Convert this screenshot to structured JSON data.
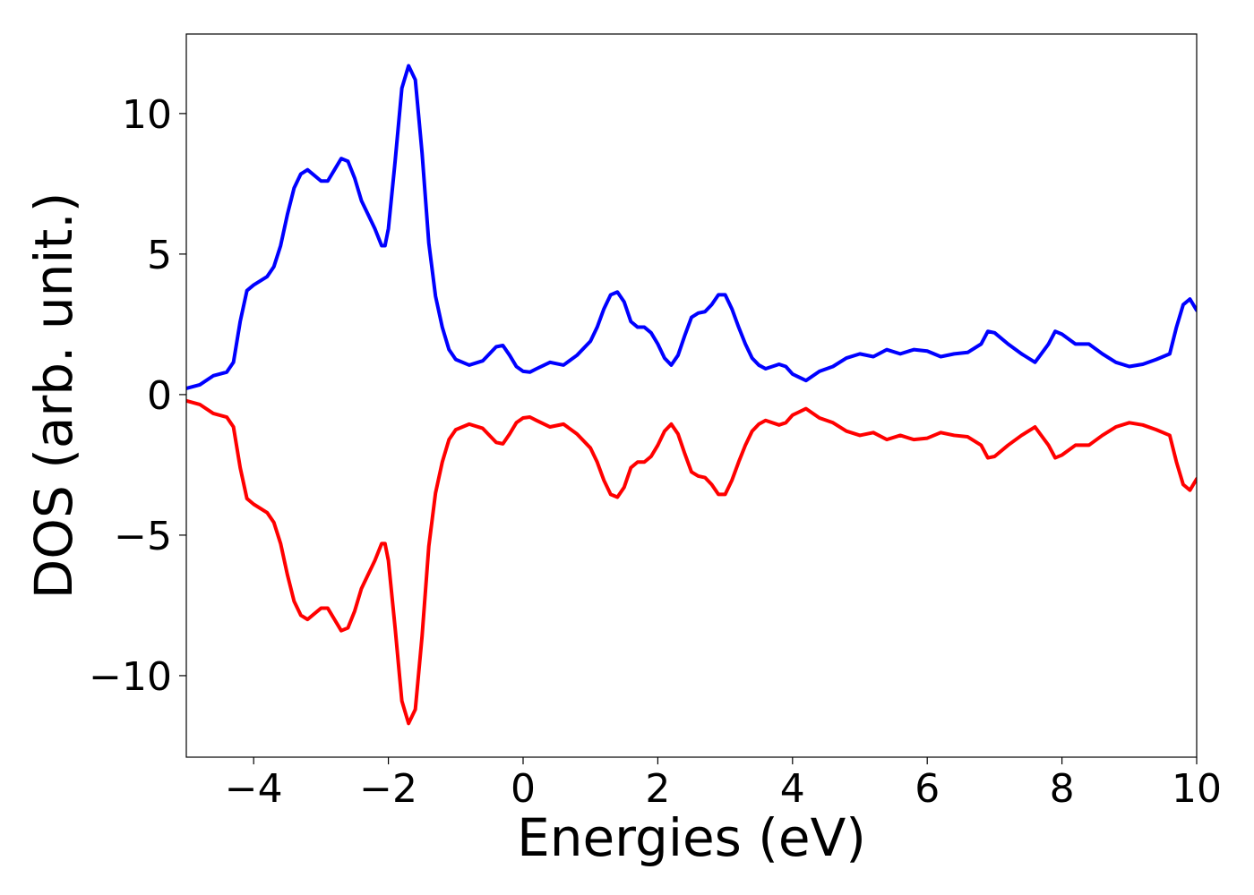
{
  "chart_data": {
    "type": "line",
    "xlabel": "Energies (eV)",
    "ylabel": "DOS (arb. unit.)",
    "x": [
      -5,
      -4.8,
      -4.6,
      -4.4,
      -4.3,
      -4.2,
      -4.1,
      -4.0,
      -3.8,
      -3.7,
      -3.6,
      -3.5,
      -3.4,
      -3.3,
      -3.2,
      -3.1,
      -3.0,
      -2.9,
      -2.8,
      -2.7,
      -2.6,
      -2.5,
      -2.4,
      -2.3,
      -2.2,
      -2.1,
      -2.05,
      -2.0,
      -1.9,
      -1.8,
      -1.7,
      -1.6,
      -1.5,
      -1.4,
      -1.3,
      -1.2,
      -1.1,
      -1.0,
      -0.8,
      -0.6,
      -0.4,
      -0.3,
      -0.2,
      -0.1,
      0.0,
      0.1,
      0.2,
      0.4,
      0.6,
      0.8,
      1.0,
      1.1,
      1.2,
      1.3,
      1.4,
      1.5,
      1.6,
      1.7,
      1.8,
      1.9,
      2.0,
      2.1,
      2.2,
      2.3,
      2.4,
      2.5,
      2.6,
      2.7,
      2.8,
      2.9,
      3.0,
      3.1,
      3.2,
      3.3,
      3.4,
      3.5,
      3.6,
      3.8,
      3.9,
      4.0,
      4.2,
      4.4,
      4.6,
      4.8,
      5.0,
      5.2,
      5.4,
      5.6,
      5.8,
      6.0,
      6.2,
      6.4,
      6.6,
      6.8,
      6.9,
      7.0,
      7.2,
      7.4,
      7.6,
      7.8,
      7.9,
      8.0,
      8.2,
      8.4,
      8.6,
      8.8,
      9.0,
      9.2,
      9.4,
      9.6,
      9.7,
      9.8,
      9.9,
      10.0
    ],
    "series": [
      {
        "color": "#0000ff",
        "values": [
          0.22,
          0.35,
          0.67,
          0.8,
          1.15,
          2.6,
          3.7,
          3.9,
          4.2,
          4.55,
          5.3,
          6.4,
          7.35,
          7.85,
          8.0,
          7.8,
          7.6,
          7.6,
          8.0,
          8.4,
          8.3,
          7.7,
          6.9,
          6.4,
          5.9,
          5.3,
          5.3,
          5.9,
          8.3,
          10.9,
          11.7,
          11.2,
          8.6,
          5.4,
          3.5,
          2.4,
          1.6,
          1.25,
          1.05,
          1.2,
          1.7,
          1.75,
          1.4,
          1.0,
          0.83,
          0.8,
          0.92,
          1.15,
          1.05,
          1.4,
          1.9,
          2.4,
          3.05,
          3.55,
          3.65,
          3.3,
          2.6,
          2.4,
          2.4,
          2.2,
          1.8,
          1.3,
          1.05,
          1.4,
          2.1,
          2.75,
          2.9,
          2.95,
          3.2,
          3.55,
          3.55,
          3.05,
          2.4,
          1.8,
          1.3,
          1.05,
          0.92,
          1.08,
          1.0,
          0.73,
          0.5,
          0.83,
          1.0,
          1.3,
          1.45,
          1.35,
          1.6,
          1.45,
          1.6,
          1.55,
          1.35,
          1.45,
          1.5,
          1.8,
          2.25,
          2.2,
          1.8,
          1.45,
          1.15,
          1.8,
          2.25,
          2.15,
          1.8,
          1.8,
          1.45,
          1.15,
          1.0,
          1.08,
          1.25,
          1.45,
          2.4,
          3.2,
          3.4,
          3.0
        ]
      },
      {
        "color": "#ff0000",
        "values": [
          -0.22,
          -0.35,
          -0.67,
          -0.8,
          -1.15,
          -2.6,
          -3.7,
          -3.9,
          -4.2,
          -4.55,
          -5.3,
          -6.4,
          -7.35,
          -7.85,
          -8.0,
          -7.8,
          -7.6,
          -7.6,
          -8.0,
          -8.4,
          -8.3,
          -7.7,
          -6.9,
          -6.4,
          -5.9,
          -5.3,
          -5.3,
          -5.9,
          -8.3,
          -10.9,
          -11.7,
          -11.2,
          -8.6,
          -5.4,
          -3.5,
          -2.4,
          -1.6,
          -1.25,
          -1.05,
          -1.2,
          -1.7,
          -1.75,
          -1.4,
          -1.0,
          -0.83,
          -0.8,
          -0.92,
          -1.15,
          -1.05,
          -1.4,
          -1.9,
          -2.4,
          -3.05,
          -3.55,
          -3.65,
          -3.3,
          -2.6,
          -2.4,
          -2.4,
          -2.2,
          -1.8,
          -1.3,
          -1.05,
          -1.4,
          -2.1,
          -2.75,
          -2.9,
          -2.95,
          -3.2,
          -3.55,
          -3.55,
          -3.05,
          -2.4,
          -1.8,
          -1.3,
          -1.05,
          -0.92,
          -1.08,
          -1.0,
          -0.73,
          -0.5,
          -0.83,
          -1.0,
          -1.3,
          -1.45,
          -1.35,
          -1.6,
          -1.45,
          -1.6,
          -1.55,
          -1.35,
          -1.45,
          -1.5,
          -1.8,
          -2.25,
          -2.2,
          -1.8,
          -1.45,
          -1.15,
          -1.8,
          -2.25,
          -2.15,
          -1.8,
          -1.8,
          -1.45,
          -1.15,
          -1.0,
          -1.08,
          -1.25,
          -1.45,
          -2.4,
          -3.2,
          -3.4,
          -3.0
        ]
      }
    ],
    "xlim": [
      -5,
      10
    ],
    "xticks": [
      {
        "value": -4,
        "label": "−4"
      },
      {
        "value": -2,
        "label": "−2"
      },
      0,
      2,
      4,
      6,
      8,
      10
    ],
    "ylim": [
      -12.9,
      12.83
    ],
    "yticks": [
      {
        "value": -10,
        "label": "−10"
      },
      {
        "value": -5,
        "label": "−5"
      },
      0,
      5,
      10
    ],
    "grid": false
  }
}
